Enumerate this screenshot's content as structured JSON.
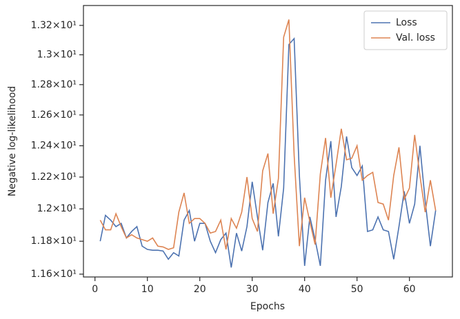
{
  "chart_data": {
    "type": "line",
    "xlabel": "Epochs",
    "ylabel": "Negative log-likelihood",
    "x": [
      1,
      2,
      3,
      4,
      5,
      6,
      7,
      8,
      9,
      10,
      11,
      12,
      13,
      14,
      15,
      16,
      17,
      18,
      19,
      20,
      21,
      22,
      23,
      24,
      25,
      26,
      27,
      28,
      29,
      30,
      31,
      32,
      33,
      34,
      35,
      36,
      37,
      38,
      39,
      40,
      41,
      42,
      43,
      44,
      45,
      46,
      47,
      48,
      49,
      50,
      51,
      52,
      53,
      54,
      55,
      56,
      57,
      58,
      59,
      60,
      61,
      62,
      63,
      64,
      65
    ],
    "series": [
      {
        "name": "Loss",
        "color": "#4c72b0",
        "values": [
          11.8,
          11.96,
          11.93,
          11.89,
          11.91,
          11.82,
          11.86,
          11.89,
          11.77,
          11.75,
          11.745,
          11.745,
          11.74,
          11.69,
          11.73,
          11.71,
          11.93,
          11.99,
          11.8,
          11.91,
          11.91,
          11.8,
          11.73,
          11.81,
          11.85,
          11.64,
          11.85,
          11.74,
          11.89,
          12.17,
          11.95,
          11.745,
          12.04,
          12.16,
          11.83,
          12.13,
          13.07,
          13.11,
          12.21,
          11.65,
          11.95,
          11.81,
          11.65,
          12.18,
          12.43,
          11.95,
          12.14,
          12.46,
          12.26,
          12.21,
          12.27,
          11.86,
          11.87,
          11.95,
          11.87,
          11.86,
          11.69,
          11.89,
          12.11,
          11.91,
          12.03,
          12.4,
          12.05,
          11.77,
          11.99
        ]
      },
      {
        "name": "Val. loss",
        "color": "#dd8452",
        "values": [
          11.93,
          11.87,
          11.87,
          11.97,
          11.89,
          11.82,
          11.84,
          11.82,
          11.81,
          11.8,
          11.82,
          11.77,
          11.765,
          11.75,
          11.76,
          11.98,
          12.1,
          11.91,
          11.94,
          11.94,
          11.91,
          11.85,
          11.86,
          11.93,
          11.75,
          11.94,
          11.88,
          11.98,
          12.2,
          11.94,
          11.86,
          12.24,
          12.35,
          11.97,
          12.19,
          13.12,
          13.24,
          12.34,
          11.77,
          12.07,
          11.92,
          11.78,
          12.22,
          12.45,
          12.07,
          12.28,
          12.51,
          12.31,
          12.32,
          12.4,
          12.18,
          12.21,
          12.23,
          12.04,
          12.03,
          11.93,
          12.21,
          12.39,
          12.06,
          12.13,
          12.47,
          12.21,
          11.98,
          12.18,
          11.99
        ]
      }
    ],
    "xlim": [
      -2.2,
      68.2
    ],
    "xticks": [
      0,
      10,
      20,
      30,
      40,
      50,
      60
    ],
    "ylim": [
      11.583,
      13.337
    ],
    "log_y": true,
    "yticks": [
      {
        "value": 11.6,
        "label": "1.16×10¹"
      },
      {
        "value": 11.8,
        "label": "1.18×10¹"
      },
      {
        "value": 12.0,
        "label": "1.2×10¹"
      },
      {
        "value": 12.2,
        "label": "1.22×10¹"
      },
      {
        "value": 12.4,
        "label": "1.24×10¹"
      },
      {
        "value": 12.6,
        "label": "1.26×10¹"
      },
      {
        "value": 12.8,
        "label": "1.28×10¹"
      },
      {
        "value": 13.0,
        "label": "1.3×10¹"
      },
      {
        "value": 13.2,
        "label": "1.32×10¹"
      }
    ],
    "legend": "upper right"
  }
}
